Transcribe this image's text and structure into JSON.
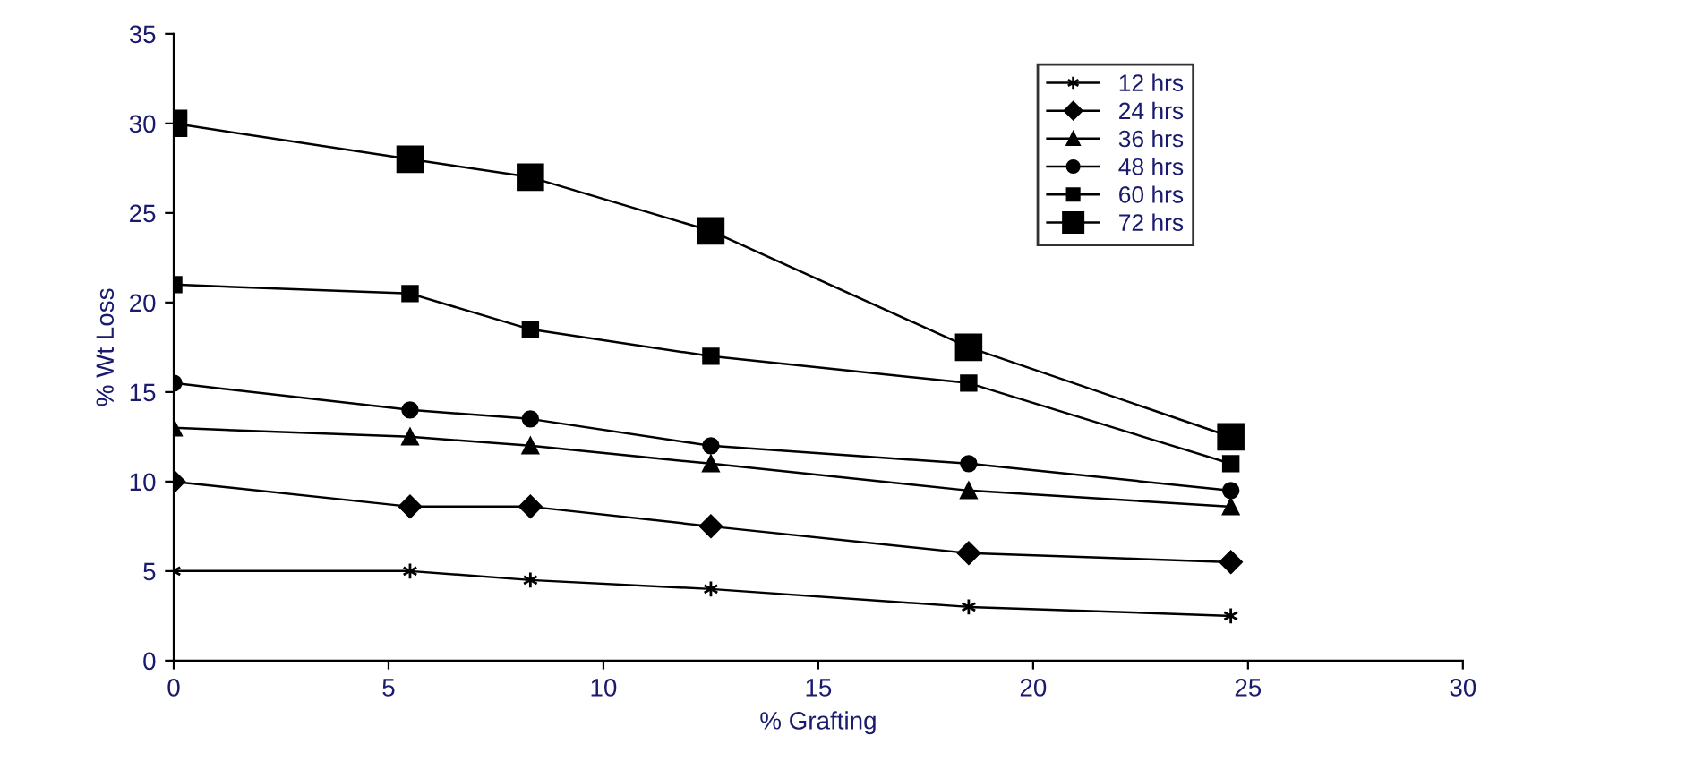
{
  "chart_data": {
    "type": "line",
    "xlabel": "% Grafting",
    "ylabel": "% Wt Loss",
    "x": [
      0,
      5.5,
      8.3,
      12.5,
      18.5,
      24.6
    ],
    "xlim": [
      0,
      30
    ],
    "xticks": [
      0,
      5,
      10,
      15,
      20,
      25,
      30
    ],
    "ylim": [
      0,
      35
    ],
    "yticks": [
      0,
      5,
      10,
      15,
      20,
      25,
      30,
      35
    ],
    "grid": false,
    "legend": "top right",
    "line_style": "solid",
    "series": [
      {
        "name": "12 hrs",
        "color": "#000000",
        "marker": "cross",
        "values": [
          5,
          5,
          4.5,
          4,
          3,
          2.5
        ]
      },
      {
        "name": "24 hrs",
        "color": "#000000",
        "marker": "diamond",
        "values": [
          10,
          8.6,
          8.6,
          7.5,
          6,
          5.5
        ]
      },
      {
        "name": "36 hrs",
        "color": "#000000",
        "marker": "triangle",
        "values": [
          13,
          12.5,
          12,
          11,
          9.5,
          8.6
        ]
      },
      {
        "name": "48 hrs",
        "color": "#000000",
        "marker": "circle",
        "values": [
          15.5,
          14,
          13.5,
          12,
          11,
          9.5
        ]
      },
      {
        "name": "60 hrs",
        "color": "#000000",
        "marker": "square",
        "values": [
          21,
          20.5,
          18.5,
          17,
          15.5,
          11
        ]
      },
      {
        "name": "72 hrs",
        "color": "#000000",
        "marker": "square",
        "values": [
          30,
          28,
          27,
          24,
          17.5,
          12.5
        ]
      }
    ]
  }
}
